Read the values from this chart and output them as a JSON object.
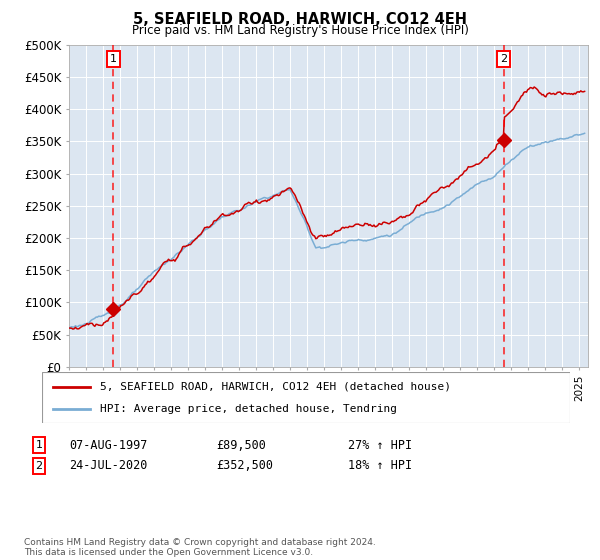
{
  "title": "5, SEAFIELD ROAD, HARWICH, CO12 4EH",
  "subtitle": "Price paid vs. HM Land Registry's House Price Index (HPI)",
  "ylim": [
    0,
    500000
  ],
  "yticks": [
    0,
    50000,
    100000,
    150000,
    200000,
    250000,
    300000,
    350000,
    400000,
    450000,
    500000
  ],
  "ytick_labels": [
    "£0",
    "£50K",
    "£100K",
    "£150K",
    "£200K",
    "£250K",
    "£300K",
    "£350K",
    "£400K",
    "£450K",
    "£500K"
  ],
  "xlim_start": 1995.0,
  "xlim_end": 2025.5,
  "sale1_x": 1997.6,
  "sale1_y": 89500,
  "sale1_label": "07-AUG-1997",
  "sale1_price": "£89,500",
  "sale1_hpi": "27% ↑ HPI",
  "sale2_x": 2020.55,
  "sale2_y": 352500,
  "sale2_label": "24-JUL-2020",
  "sale2_price": "£352,500",
  "sale2_hpi": "18% ↑ HPI",
  "red_line_color": "#cc0000",
  "blue_line_color": "#7aadd4",
  "plot_bg_color": "#dce6f1",
  "legend_line1": "5, SEAFIELD ROAD, HARWICH, CO12 4EH (detached house)",
  "legend_line2": "HPI: Average price, detached house, Tendring",
  "footer": "Contains HM Land Registry data © Crown copyright and database right 2024.\nThis data is licensed under the Open Government Licence v3.0."
}
